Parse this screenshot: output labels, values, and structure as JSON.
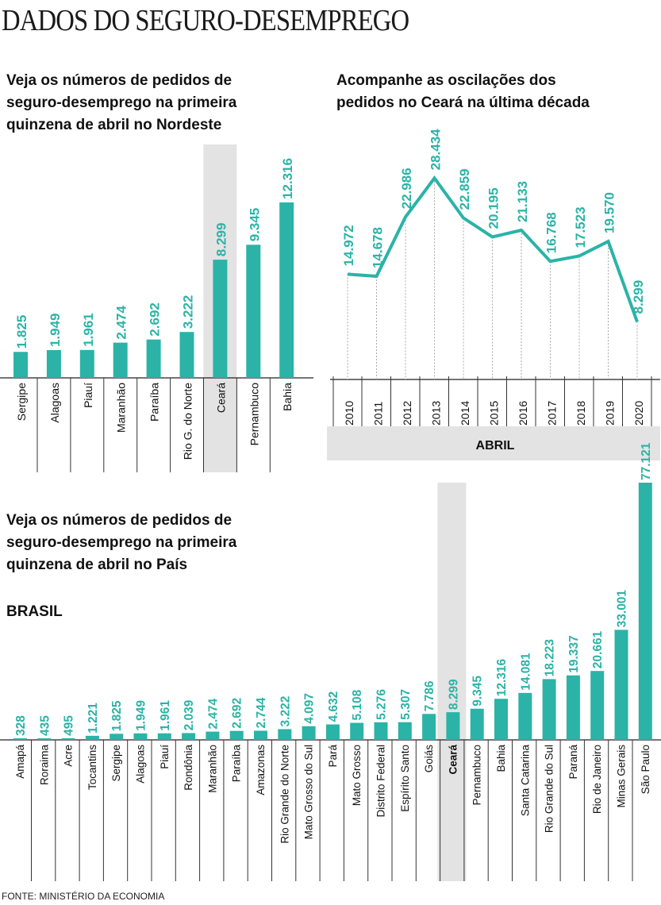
{
  "title": "DADOS DO SEGURO-DESEMPREGO",
  "source": "FONTE: MINISTÉRIO DA ECONOMIA",
  "colors": {
    "accent": "#2bb3a7",
    "highlight": "#e3e3e3",
    "text": "#111111"
  },
  "chart_data": [
    {
      "type": "bar",
      "title": "Veja os números de pedidos de\nseguro-desemprego na primeira\nquinzena de abril no Nordeste",
      "categories": [
        "Sergipe",
        "Alagoas",
        "Piauí",
        "Maranhão",
        "Paraíba",
        "Rio G. do Norte",
        "Ceará",
        "Pernambuco",
        "Bahia"
      ],
      "values": [
        1825,
        1949,
        1961,
        2474,
        2692,
        3222,
        8299,
        9345,
        12316
      ],
      "value_labels": [
        "1.825",
        "1.949",
        "1.961",
        "2.474",
        "2.692",
        "3.222",
        "8.299",
        "9.345",
        "12.316"
      ],
      "highlight": "Ceará"
    },
    {
      "type": "line",
      "title": "Acompanhe as oscilações dos\npedidos no Ceará na última década",
      "x": [
        "2010",
        "2011",
        "2012",
        "2013",
        "2014",
        "2015",
        "2016",
        "2017",
        "2018",
        "2019",
        "2020"
      ],
      "values": [
        14972,
        14678,
        22986,
        28434,
        22859,
        20195,
        21133,
        16768,
        17523,
        19570,
        8299
      ],
      "value_labels": [
        "14.972",
        "14.678",
        "22.986",
        "28.434",
        "22.859",
        "20.195",
        "21.133",
        "16.768",
        "17.523",
        "19.570",
        "8.299"
      ],
      "xlabel": "ABRIL"
    },
    {
      "type": "bar",
      "title": "Veja os números de pedidos de\nseguro-desemprego na primeira\nquinzena de abril no País",
      "label": "BRASIL",
      "categories": [
        "Amapá",
        "Roraima",
        "Acre",
        "Tocantins",
        "Sergipe",
        "Alagoas",
        "Piauí",
        "Rondônia",
        "Maranhão",
        "Paraíba",
        "Amazonas",
        "Rio Grande do Norte",
        "Mato Grosso do Sul",
        "Pará",
        "Mato Grosso",
        "Distrito Federal",
        "Espírito Santo",
        "Goiás",
        "Ceará",
        "Pernambuco",
        "Bahia",
        "Santa Catarina",
        "Rio Grande do Sul",
        "Paraná",
        "Rio de Janeiro",
        "Minas Gerais",
        "São Paulo"
      ],
      "values": [
        328,
        435,
        495,
        1221,
        1825,
        1949,
        1961,
        2039,
        2474,
        2692,
        2744,
        3222,
        4097,
        4632,
        5108,
        5276,
        5307,
        7786,
        8299,
        9345,
        12316,
        14081,
        18223,
        19337,
        20661,
        33001,
        77121
      ],
      "value_labels": [
        "328",
        "435",
        "495",
        "1.221",
        "1.825",
        "1.949",
        "1.961",
        "2.039",
        "2.474",
        "2.692",
        "2.744",
        "3.222",
        "4.097",
        "4.632",
        "5.108",
        "5.276",
        "5.307",
        "7.786",
        "8.299",
        "9.345",
        "12.316",
        "14.081",
        "18.223",
        "19.337",
        "20.661",
        "33.001",
        "77.121"
      ],
      "highlight": "Ceará"
    }
  ]
}
